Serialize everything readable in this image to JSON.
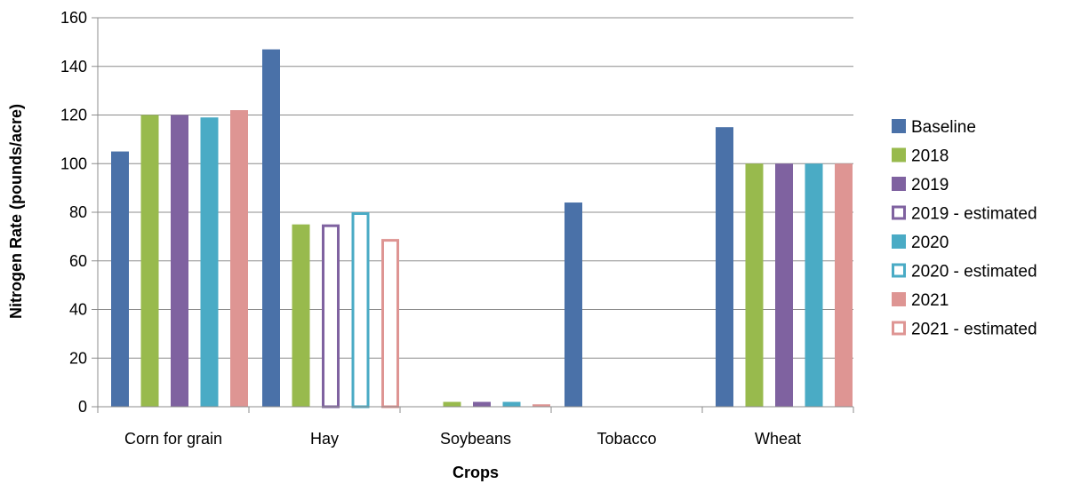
{
  "chart_data": {
    "type": "bar",
    "categories": [
      "Corn for grain",
      "Hay",
      "Soybeans",
      "Tobacco",
      "Wheat"
    ],
    "xlabel": "Crops",
    "ylabel": "Nitrogen Rate (pounds/acre)",
    "ylim": [
      0,
      160
    ],
    "yticks": [
      0,
      20,
      40,
      60,
      80,
      100,
      120,
      140,
      160
    ],
    "grid": true,
    "legend_position": "right",
    "series": [
      {
        "name": "Baseline",
        "style": "solid",
        "color": "#4A71A8",
        "values": [
          105,
          147,
          0,
          84,
          115
        ]
      },
      {
        "name": "2018",
        "style": "solid",
        "color": "#98BA4D",
        "values": [
          120,
          75,
          2,
          0,
          100
        ]
      },
      {
        "name": "2019",
        "style": "solid",
        "color": "#7F62A0",
        "values": [
          120,
          0,
          2,
          0,
          100
        ]
      },
      {
        "name": "2019 - estimated",
        "style": "outline",
        "color": "#7F62A0",
        "values": [
          0,
          75,
          0,
          0,
          0
        ]
      },
      {
        "name": "2020",
        "style": "solid",
        "color": "#4AABC5",
        "values": [
          119,
          0,
          2,
          0,
          100
        ]
      },
      {
        "name": "2020 - estimated",
        "style": "outline",
        "color": "#4AABC5",
        "values": [
          0,
          80,
          0,
          0,
          0
        ]
      },
      {
        "name": "2021",
        "style": "solid",
        "color": "#DE9593",
        "values": [
          122,
          0,
          1,
          0,
          100
        ]
      },
      {
        "name": "2021 - estimated",
        "style": "outline",
        "color": "#DE9593",
        "values": [
          0,
          69,
          0,
          0,
          0
        ]
      }
    ]
  }
}
